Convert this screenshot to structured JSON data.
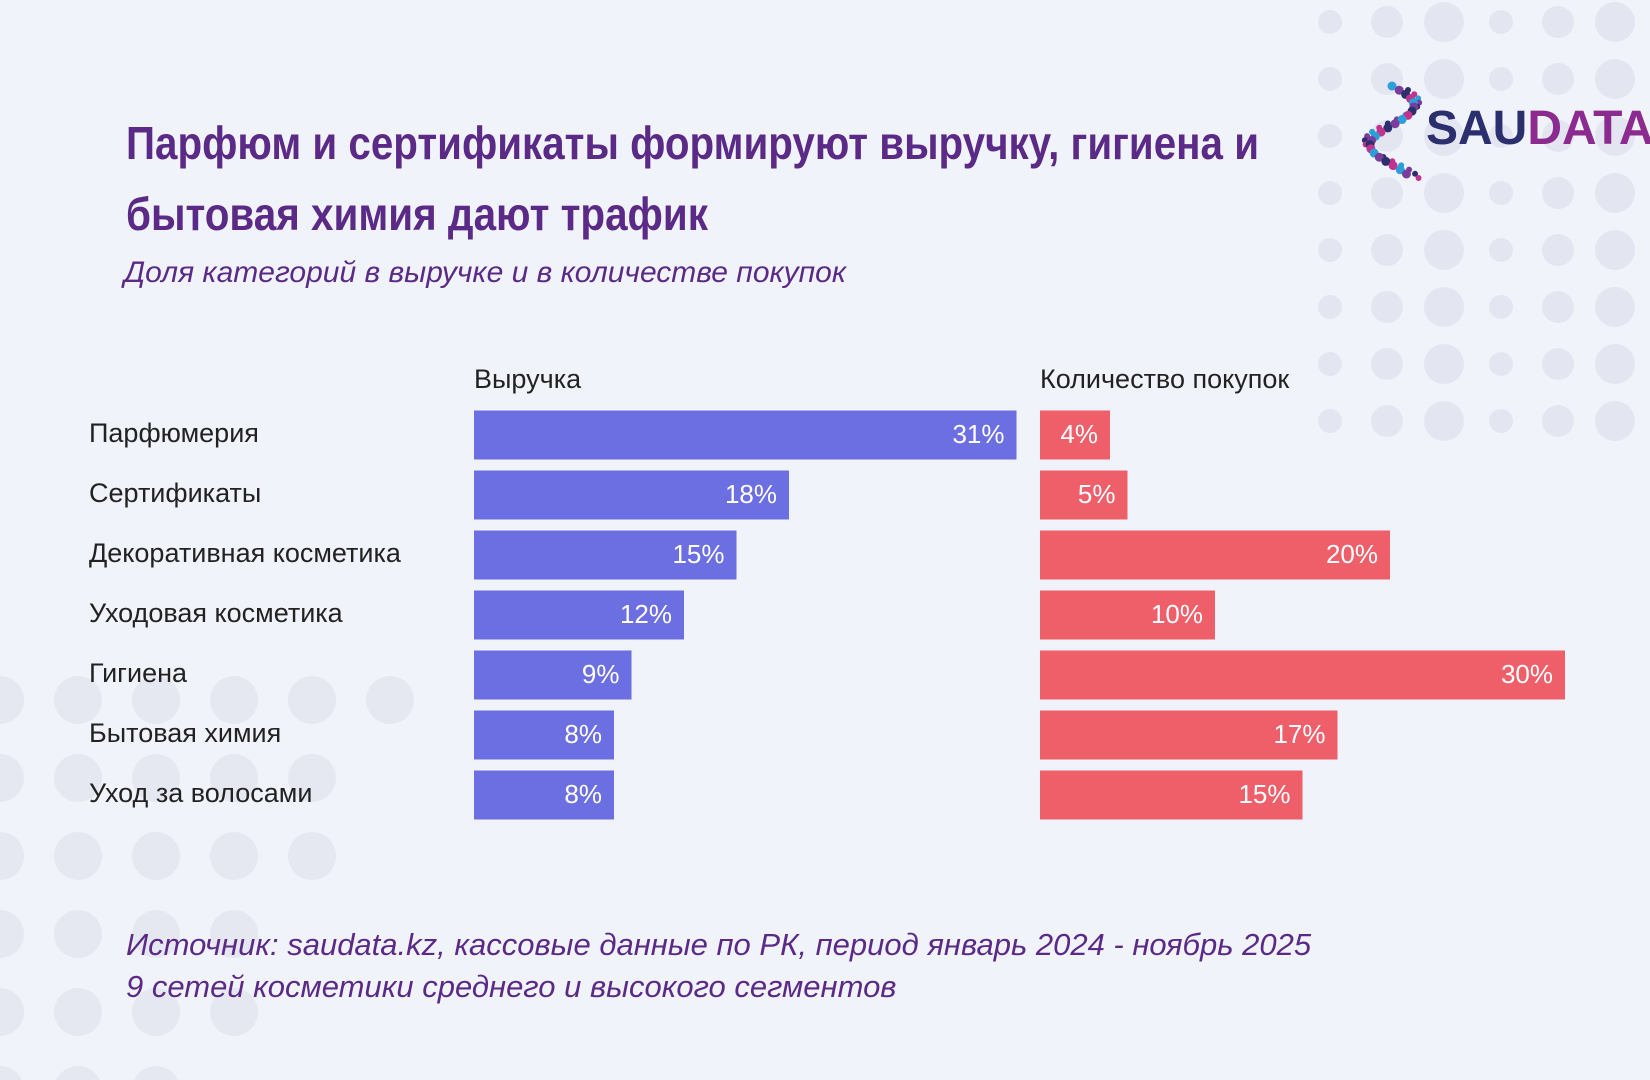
{
  "logo": {
    "left": "SAU",
    "right": "DATA"
  },
  "chart_data": {
    "type": "bar",
    "title": [
      "Парфюм и сертификаты формируют выручку, гигиена и",
      "бытовая химия дают трафик"
    ],
    "subtitle": "Доля категорий в выручке и в количестве покупок",
    "categories": [
      "Парфюмерия",
      "Сертификаты",
      "Декоративная косметика",
      "Уходовая косметика",
      "Гигиена",
      "Бытовая химия",
      "Уход за волосами"
    ],
    "series": [
      {
        "name": "Выручка",
        "color": "#6c6fe2",
        "values": [
          31,
          18,
          15,
          12,
          9,
          8,
          8
        ],
        "value_labels": [
          "31%",
          "18%",
          "15%",
          "12%",
          "9%",
          "8%",
          "8%"
        ]
      },
      {
        "name": "Количество покупок",
        "color": "#ee5f6a",
        "values": [
          4,
          5,
          20,
          10,
          30,
          17,
          15
        ],
        "value_labels": [
          "4%",
          "5%",
          "20%",
          "10%",
          "30%",
          "17%",
          "15%"
        ]
      }
    ],
    "notes": [
      "Источник: saudata.kz, кассовые данные по РК, период январь 2024 - ноябрь 2025",
      "9 сетей косметики среднего и высокого сегментов"
    ]
  }
}
